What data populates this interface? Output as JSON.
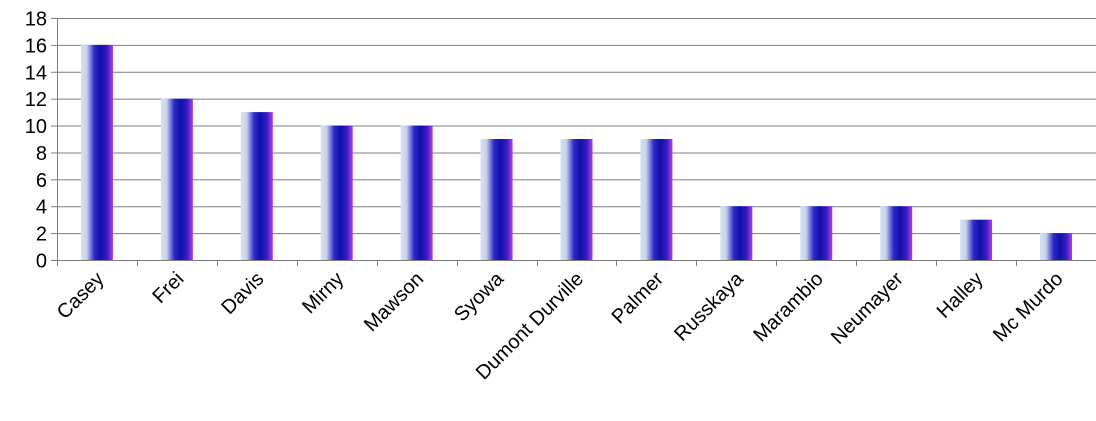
{
  "chart_data": {
    "type": "bar",
    "categories": [
      "Casey",
      "Frei",
      "Davis",
      "Mirny",
      "Mawson",
      "Syowa",
      "Dumont Durville",
      "Palmer",
      "Russkaya",
      "Marambio",
      "Neumayer",
      "Halley",
      "Mc Murdo"
    ],
    "values": [
      16,
      12,
      11,
      10,
      10,
      9,
      9,
      9,
      4,
      4,
      4,
      3,
      2
    ],
    "title": "",
    "xlabel": "",
    "ylabel": "",
    "ylim": [
      0,
      18
    ],
    "yticks": [
      0,
      2,
      4,
      6,
      8,
      10,
      12,
      14,
      16,
      18
    ],
    "grid": true,
    "legend": "none",
    "colors": {
      "bar_light": "#c8d2ea",
      "bar_mid": "#1a1ab8",
      "bar_dark": "#1010a0",
      "bar_edge": "#b040d8",
      "grid": "#7f7f7f"
    }
  }
}
